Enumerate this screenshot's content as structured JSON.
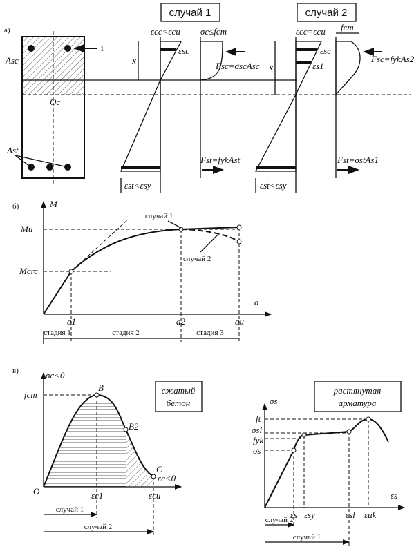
{
  "panel_a": {
    "label": "а)",
    "case1": "случай 1",
    "case2": "случай 2",
    "marker": "1",
    "asc": "Asc",
    "ast": "Ast",
    "oc": "Oc",
    "x1": "x",
    "x2": "x",
    "c1_top": "εcc<εcu",
    "c1_esc": "εsc",
    "c1_stress": "σc≤fcm",
    "c1_fsc": "Fsc=σscAsc",
    "c1_fst": "Fst=fykAst",
    "c1_bottom": "εst<εsy",
    "c2_top": "εcc=εcu",
    "c2_esc": "εsc",
    "c2_es1": "εs1",
    "c2_fcm": "fcm",
    "c2_fsc": "Fsc=fykAs2",
    "c2_fst": "Fst=σstAs1",
    "c2_bottom": "εst<εsy"
  },
  "panel_b": {
    "label": "б)",
    "y_axis": "M",
    "mu": "Mu",
    "mcrc": "Mcrc",
    "curve1": "случай 1",
    "curve2": "случай 2",
    "x_axis": "a",
    "a1": "a1",
    "a2": "a2",
    "au": "au",
    "stage1": "стадия 1",
    "stage2": "стадия 2",
    "stage3": "стадия 3"
  },
  "panel_c": {
    "label": "в)",
    "concrete": {
      "y_axis": "σc<0",
      "fcm": "fcm",
      "b": "B",
      "b2": "B2",
      "c": "C",
      "origin": "O",
      "x_axis": "εc<0",
      "ec1": "εc1",
      "ecu": "εcu",
      "case1": "случай 1",
      "case2": "случай 2",
      "box_line1": "сжатый",
      "box_line2": "бетон"
    },
    "steel": {
      "y_axis": "σs",
      "ft": "ft",
      "ssl": "σsl",
      "fyk": "fyk",
      "ss": "σs",
      "es": "εs",
      "esy": "εsy",
      "esl": "εsl",
      "euk": "εuk",
      "x_axis": "εs",
      "case2": "случай 2",
      "case1": "случай 1",
      "box_line1": "растянутая",
      "box_line2": "арматура"
    }
  }
}
